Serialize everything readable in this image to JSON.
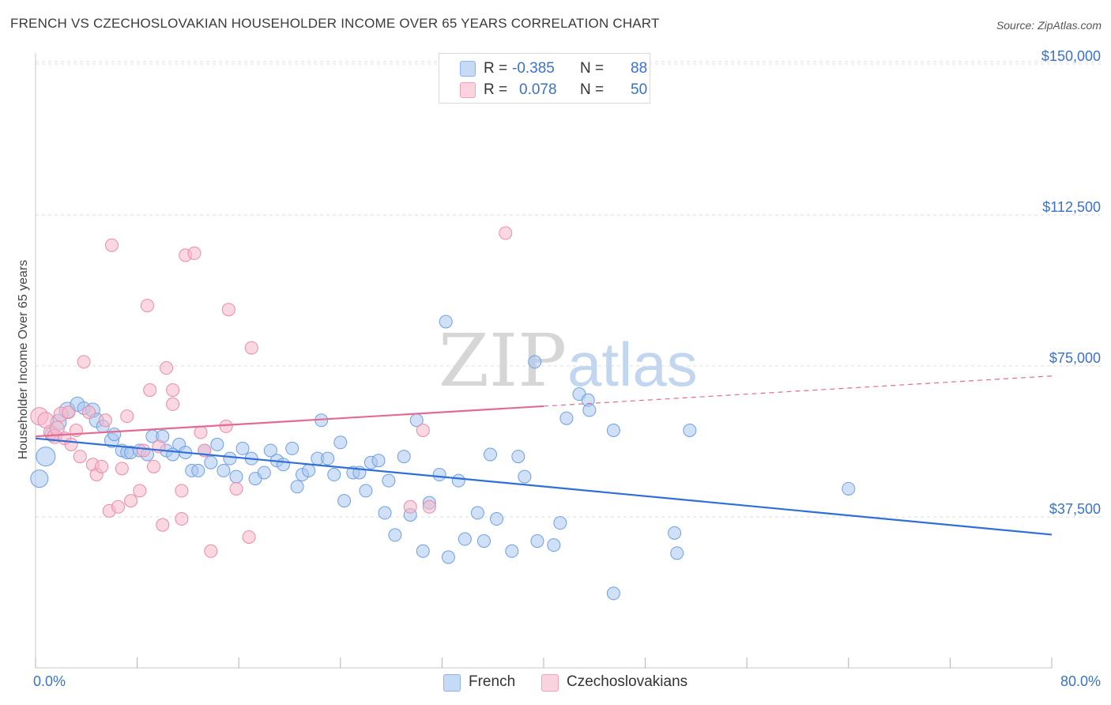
{
  "header": {
    "title": "FRENCH VS CZECHOSLOVAKIAN HOUSEHOLDER INCOME OVER 65 YEARS CORRELATION CHART",
    "source": "Source: ZipAtlas.com"
  },
  "watermark": {
    "part1": "ZIP",
    "part2": "atlas"
  },
  "legend": {
    "rows": [
      {
        "r_label": "R =",
        "r_value": "-0.385",
        "n_label": "N =",
        "n_value": "88",
        "color": "#a9c7f0"
      },
      {
        "r_label": "R =",
        "r_value": "0.078",
        "n_label": "N =",
        "n_value": "50",
        "color": "#f6b8ca"
      }
    ]
  },
  "bottom_legend": {
    "french": "French",
    "czechoslovakians": "Czechoslovakians"
  },
  "x_ticks": {
    "left": "0.0%",
    "right": "80.0%"
  },
  "chart_data": {
    "type": "scatter",
    "title": "FRENCH VS CZECHOSLOVAKIAN HOUSEHOLDER INCOME OVER 65 YEARS CORRELATION CHART",
    "xlabel": "",
    "ylabel": "Householder Income Over 65 years",
    "xlim": [
      0,
      80
    ],
    "ylim": [
      0,
      157000
    ],
    "y_ticks": [
      {
        "value": 37500,
        "label": "$37,500"
      },
      {
        "value": 75000,
        "label": "$75,000"
      },
      {
        "value": 112500,
        "label": "$112,500"
      },
      {
        "value": 150000,
        "label": "$150,000"
      }
    ],
    "grid": true,
    "legend_position": "top-center",
    "series": [
      {
        "name": "French",
        "color": "#a9c7f0",
        "edge": "#6f9fe0",
        "line_color": "#2f6fd6",
        "trend": {
          "x": [
            0,
            80
          ],
          "y": [
            57000,
            33100
          ],
          "dashed_from": null
        },
        "points": [
          [
            0.3,
            47000,
            11
          ],
          [
            0.8,
            52500,
            12
          ],
          [
            1.3,
            58000,
            9
          ],
          [
            1.8,
            61000,
            10
          ],
          [
            2.5,
            64000,
            10
          ],
          [
            3.3,
            65500,
            9
          ],
          [
            3.8,
            64500,
            8
          ],
          [
            4.5,
            64000,
            9
          ],
          [
            4.8,
            61500,
            9
          ],
          [
            5.3,
            60000,
            8
          ],
          [
            6.0,
            56500,
            9
          ],
          [
            6.2,
            58000,
            8
          ],
          [
            6.8,
            54000,
            8
          ],
          [
            7.2,
            53500,
            8
          ],
          [
            7.5,
            53500,
            8
          ],
          [
            8.2,
            54000,
            8
          ],
          [
            8.8,
            53000,
            8
          ],
          [
            9.2,
            57500,
            8
          ],
          [
            10.0,
            57500,
            8
          ],
          [
            10.3,
            54000,
            8
          ],
          [
            10.8,
            53000,
            8
          ],
          [
            11.3,
            55500,
            8
          ],
          [
            11.8,
            53500,
            8
          ],
          [
            12.3,
            49000,
            8
          ],
          [
            12.8,
            49000,
            8
          ],
          [
            13.3,
            54000,
            8
          ],
          [
            13.8,
            51000,
            8
          ],
          [
            14.3,
            55500,
            8
          ],
          [
            14.8,
            49000,
            8
          ],
          [
            15.3,
            52000,
            8
          ],
          [
            15.8,
            47500,
            8
          ],
          [
            16.3,
            54500,
            8
          ],
          [
            17.0,
            52000,
            8
          ],
          [
            17.3,
            47000,
            8
          ],
          [
            18.0,
            48500,
            8
          ],
          [
            18.5,
            54000,
            8
          ],
          [
            19.0,
            51500,
            8
          ],
          [
            19.5,
            50500,
            8
          ],
          [
            20.2,
            54500,
            8
          ],
          [
            20.6,
            45000,
            8
          ],
          [
            21.0,
            48000,
            8
          ],
          [
            21.5,
            49000,
            8
          ],
          [
            22.2,
            52000,
            8
          ],
          [
            22.5,
            61500,
            8
          ],
          [
            23.0,
            52000,
            8
          ],
          [
            23.5,
            48000,
            8
          ],
          [
            24.0,
            56000,
            8
          ],
          [
            24.3,
            41500,
            8
          ],
          [
            25.0,
            48500,
            8
          ],
          [
            25.5,
            48500,
            8
          ],
          [
            26.0,
            44000,
            8
          ],
          [
            26.4,
            51000,
            8
          ],
          [
            27.0,
            51500,
            8
          ],
          [
            27.5,
            38500,
            8
          ],
          [
            27.8,
            46500,
            8
          ],
          [
            28.3,
            33000,
            8
          ],
          [
            29.0,
            52500,
            8
          ],
          [
            29.5,
            38000,
            8
          ],
          [
            30.0,
            61500,
            8
          ],
          [
            30.5,
            29000,
            8
          ],
          [
            31.0,
            41000,
            8
          ],
          [
            31.8,
            48000,
            8
          ],
          [
            32.3,
            86000,
            8
          ],
          [
            32.5,
            27500,
            8
          ],
          [
            33.3,
            46500,
            8
          ],
          [
            33.8,
            32000,
            8
          ],
          [
            34.8,
            38500,
            8
          ],
          [
            35.3,
            31500,
            8
          ],
          [
            35.8,
            53000,
            8
          ],
          [
            36.3,
            37000,
            8
          ],
          [
            37.5,
            29000,
            8
          ],
          [
            38.0,
            52500,
            8
          ],
          [
            38.5,
            47500,
            8
          ],
          [
            39.3,
            76000,
            8
          ],
          [
            39.5,
            31500,
            8
          ],
          [
            40.8,
            30500,
            8
          ],
          [
            41.3,
            36000,
            8
          ],
          [
            41.8,
            62000,
            8
          ],
          [
            42.8,
            68000,
            8
          ],
          [
            43.5,
            66500,
            8
          ],
          [
            43.6,
            64000,
            8
          ],
          [
            45.5,
            59000,
            8
          ],
          [
            45.5,
            18500,
            8
          ],
          [
            50.3,
            33500,
            8
          ],
          [
            50.5,
            28500,
            8
          ],
          [
            51.5,
            59000,
            8
          ],
          [
            64.0,
            44500,
            8
          ]
        ]
      },
      {
        "name": "Czechoslovakians",
        "color": "#f6b8ca",
        "edge": "#ec8aa8",
        "line_color": "#e36b93",
        "trend": {
          "x": [
            0,
            80
          ],
          "y": [
            57500,
            72500
          ],
          "dashed_from": 40
        },
        "points": [
          [
            0.3,
            62500,
            11
          ],
          [
            0.8,
            61500,
            10
          ],
          [
            1.2,
            58500,
            9
          ],
          [
            1.5,
            57500,
            9
          ],
          [
            1.7,
            59500,
            9
          ],
          [
            2.0,
            63000,
            9
          ],
          [
            2.3,
            57000,
            8
          ],
          [
            2.6,
            63500,
            8
          ],
          [
            2.8,
            55500,
            8
          ],
          [
            3.2,
            59000,
            8
          ],
          [
            3.5,
            52500,
            8
          ],
          [
            3.8,
            76000,
            8
          ],
          [
            4.2,
            63500,
            8
          ],
          [
            4.5,
            50500,
            8
          ],
          [
            4.8,
            48000,
            8
          ],
          [
            5.2,
            50000,
            8
          ],
          [
            5.5,
            61500,
            8
          ],
          [
            5.8,
            39000,
            8
          ],
          [
            6.0,
            105000,
            8
          ],
          [
            6.5,
            40000,
            8
          ],
          [
            6.8,
            49500,
            8
          ],
          [
            7.2,
            62500,
            8
          ],
          [
            7.5,
            41500,
            8
          ],
          [
            8.2,
            44000,
            8
          ],
          [
            8.5,
            54000,
            8
          ],
          [
            8.8,
            90000,
            8
          ],
          [
            9.0,
            69000,
            8
          ],
          [
            9.3,
            50000,
            8
          ],
          [
            9.7,
            55000,
            8
          ],
          [
            10.0,
            35500,
            8
          ],
          [
            10.3,
            74500,
            8
          ],
          [
            10.8,
            69000,
            8
          ],
          [
            10.8,
            65500,
            8
          ],
          [
            11.5,
            37000,
            8
          ],
          [
            11.5,
            44000,
            8
          ],
          [
            11.8,
            102500,
            8
          ],
          [
            12.5,
            103000,
            8
          ],
          [
            13.0,
            58500,
            8
          ],
          [
            13.3,
            54000,
            8
          ],
          [
            13.8,
            29000,
            8
          ],
          [
            15.0,
            60000,
            8
          ],
          [
            15.2,
            89000,
            8
          ],
          [
            15.8,
            44500,
            8
          ],
          [
            16.8,
            32500,
            8
          ],
          [
            17.0,
            79500,
            8
          ],
          [
            29.5,
            40000,
            8
          ],
          [
            30.5,
            59000,
            8
          ],
          [
            31.0,
            40000,
            8
          ],
          [
            37.0,
            108000,
            8
          ]
        ]
      }
    ]
  }
}
